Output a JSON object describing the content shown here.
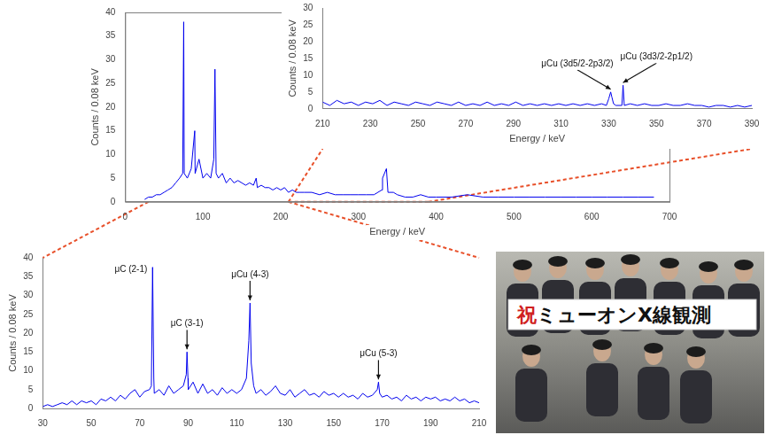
{
  "chart_data": [
    {
      "type": "line",
      "x_label": "Energy / keV",
      "y_label": "Counts / 0.08 keV",
      "color": "#0000ee",
      "grid": false,
      "x": [
        25,
        30,
        35,
        40,
        45,
        50,
        55,
        60,
        65,
        70,
        74,
        75.3,
        76,
        80,
        85,
        89.5,
        90,
        95,
        100,
        105,
        110,
        114,
        115.5,
        117,
        120,
        125,
        130,
        135,
        140,
        145,
        150,
        155,
        160,
        165,
        168.5,
        170,
        175,
        180,
        185,
        190,
        195,
        200,
        205,
        210,
        215,
        220,
        225,
        230,
        240,
        250,
        260,
        270,
        280,
        290,
        300,
        310,
        320,
        330,
        331,
        336,
        338,
        345,
        350,
        360,
        370,
        380,
        390,
        400,
        420,
        440,
        460,
        480,
        500,
        520,
        540,
        560,
        580,
        600,
        620,
        640,
        660,
        680
      ],
      "values": [
        0.5,
        1,
        1,
        1.5,
        1.5,
        2,
        2.5,
        3,
        4,
        5,
        6,
        38,
        6,
        5,
        7,
        15,
        6,
        9,
        5,
        6,
        5,
        9,
        28,
        6,
        5,
        6,
        4,
        5,
        4,
        4.5,
        4,
        3.5,
        4,
        3.5,
        5,
        3,
        3.5,
        3,
        3,
        2.5,
        3,
        2.5,
        3,
        2,
        2.5,
        2,
        2,
        2,
        2,
        1.5,
        2,
        1.5,
        1.5,
        1.5,
        1.5,
        1.5,
        1.5,
        2.5,
        5,
        7,
        2,
        2,
        1.5,
        1,
        1,
        1.5,
        1,
        1,
        1,
        1.5,
        1,
        1,
        1,
        1,
        1,
        1,
        1,
        1,
        1,
        1,
        1,
        1
      ],
      "xlim": [
        0,
        700
      ],
      "xticks": [
        0,
        100,
        200,
        300,
        400,
        500,
        600,
        700
      ],
      "ylim": [
        0,
        40
      ],
      "yticks": [
        0,
        5,
        10,
        15,
        20,
        25,
        30,
        35,
        40
      ]
    },
    {
      "type": "line",
      "x_label": "Energy / keV",
      "y_label": "Counts / 0.08 keV",
      "color": "#0000ee",
      "grid": false,
      "x": [
        210,
        213,
        216,
        219,
        222,
        225,
        228,
        231,
        234,
        237,
        240,
        243,
        246,
        249,
        252,
        255,
        258,
        261,
        264,
        267,
        270,
        273,
        276,
        279,
        282,
        285,
        288,
        291,
        294,
        297,
        300,
        303,
        306,
        309,
        312,
        315,
        318,
        321,
        324,
        327,
        329,
        330,
        330.8,
        331.3,
        332,
        333,
        335.5,
        336,
        336.5,
        339,
        342,
        345,
        348,
        351,
        354,
        357,
        360,
        363,
        366,
        369,
        372,
        375,
        378,
        381,
        384,
        387,
        390
      ],
      "values": [
        2,
        1,
        2.5,
        1.5,
        2,
        1,
        2,
        1.5,
        2.5,
        1,
        2,
        1.5,
        1,
        2,
        1.5,
        1,
        2,
        1.5,
        1,
        2,
        1,
        1.5,
        1,
        2,
        1,
        1.5,
        1,
        2,
        1,
        1.5,
        1,
        1.5,
        1,
        1.5,
        1,
        1.5,
        1,
        1.5,
        1,
        1.5,
        1,
        3,
        5,
        3.5,
        1.5,
        1,
        1,
        7,
        1,
        1.5,
        1,
        1.5,
        1,
        1,
        1.5,
        1,
        1,
        1.5,
        1,
        1,
        0.5,
        1,
        1,
        0.5,
        1,
        0.5,
        1
      ],
      "xlim": [
        210,
        390
      ],
      "xticks": [
        210,
        230,
        250,
        270,
        290,
        310,
        330,
        350,
        370,
        390
      ],
      "ylim": [
        0,
        30
      ],
      "yticks": [
        0,
        5,
        10,
        15,
        20,
        25,
        30
      ],
      "annotations": [
        {
          "text": "μCu (3d5/2-2p3/2)",
          "x": 330.8,
          "y": 5
        },
        {
          "text": "μCu (3d3/2-2p1/2)",
          "x": 336,
          "y": 7
        }
      ]
    },
    {
      "type": "line",
      "y_label": "Counts / 0.08 keV",
      "color": "#0000ee",
      "grid": false,
      "x": [
        30,
        32,
        34,
        36,
        38,
        40,
        42,
        44,
        46,
        48,
        50,
        52,
        54,
        56,
        58,
        60,
        62,
        64,
        66,
        68,
        70,
        72,
        74,
        74.8,
        75.3,
        75.8,
        76,
        78,
        80,
        82,
        84,
        86,
        88,
        89.2,
        89.5,
        89.9,
        90,
        92,
        94,
        96,
        98,
        100,
        102,
        104,
        106,
        108,
        110,
        112,
        114,
        115,
        115.5,
        116,
        117,
        118,
        120,
        122,
        124,
        126,
        128,
        130,
        132,
        134,
        136,
        138,
        140,
        142,
        144,
        146,
        148,
        150,
        152,
        154,
        156,
        158,
        160,
        162,
        164,
        166,
        168,
        168.5,
        169,
        170,
        172,
        174,
        176,
        178,
        180,
        182,
        184,
        186,
        188,
        190,
        192,
        194,
        196,
        198,
        200,
        202,
        204,
        206,
        208,
        210
      ],
      "values": [
        0.5,
        1,
        0.5,
        1,
        1.5,
        1,
        2,
        1,
        2,
        1.5,
        2,
        1,
        2.5,
        2,
        3,
        2,
        3.5,
        2.5,
        4,
        5,
        3,
        4.5,
        5,
        6,
        37.5,
        8,
        4,
        5,
        3.5,
        6,
        4,
        5,
        6,
        9,
        15,
        8,
        5,
        7,
        4,
        6.5,
        4,
        5,
        3.5,
        5.5,
        4,
        5,
        4,
        5,
        8,
        18,
        28,
        12,
        6,
        4,
        5,
        3.5,
        4.5,
        6,
        4,
        3.5,
        5,
        3,
        4,
        5,
        3.5,
        4,
        3,
        4.5,
        3.5,
        4,
        3,
        4,
        3,
        3.5,
        2.5,
        4,
        3,
        3.5,
        5,
        7,
        4,
        3,
        3.5,
        2.5,
        3,
        2,
        3.5,
        2.5,
        3,
        2,
        3,
        2.5,
        3,
        2,
        2.5,
        2,
        3,
        2,
        2.5,
        1.5,
        2,
        1.5
      ],
      "xlim": [
        30,
        210
      ],
      "xticks": [
        30,
        50,
        70,
        90,
        110,
        130,
        150,
        170,
        190,
        210
      ],
      "ylim": [
        0,
        40
      ],
      "yticks": [
        0,
        5,
        10,
        15,
        20,
        25,
        30,
        35,
        40
      ],
      "annotations": [
        {
          "text": "μC (2-1)",
          "x": 75.3,
          "y": 37.5
        },
        {
          "text": "μC (3-1)",
          "x": 89.5,
          "y": 15
        },
        {
          "text": "μCu (4-3)",
          "x": 115.5,
          "y": 28
        },
        {
          "text": "μCu (5-3)",
          "x": 168.5,
          "y": 7
        }
      ]
    }
  ],
  "photo": {
    "banner": "祝ミューオンX線観測"
  }
}
